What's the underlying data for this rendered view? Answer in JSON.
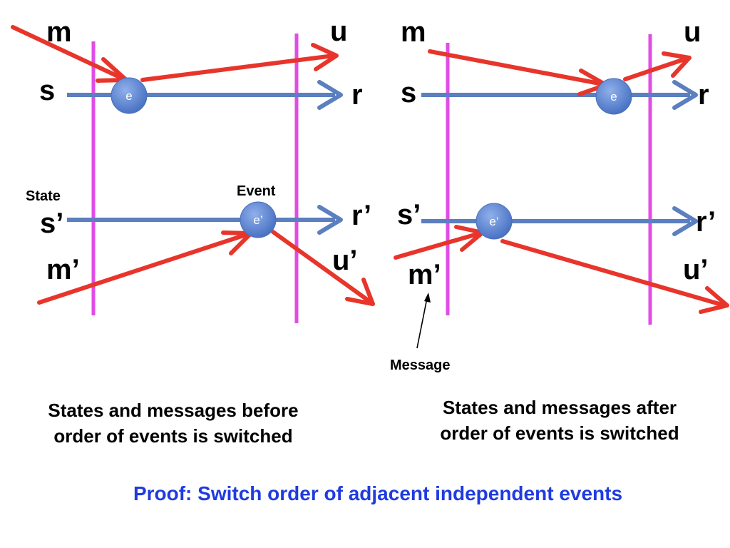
{
  "colors": {
    "state_line": "#5b7fbf",
    "message_arrow": "#e8352b",
    "cut_line": "#e14ce6",
    "event_node": "#5e86d1",
    "title_text": "#1f3be0"
  },
  "left_diagram": {
    "message_in_label": "m",
    "message_out_label": "u",
    "state_in_label": "s",
    "state_out_label": "r",
    "event_label": "e",
    "state_in_label_2": "s’",
    "state_out_label_2": "r’",
    "message_in_label_2": "m’",
    "message_out_label_2": "u’",
    "event_label_2": "e’",
    "state_annotation": "State",
    "event_annotation": "Event",
    "caption_line1": "States and messages before",
    "caption_line2": "order of events is switched"
  },
  "right_diagram": {
    "message_in_label": "m",
    "message_out_label": "u",
    "state_in_label": "s",
    "state_out_label": "r",
    "event_label": "e",
    "state_in_label_2": "s’",
    "state_out_label_2": "r’",
    "message_in_label_2": "m’",
    "message_out_label_2": "u’",
    "event_label_2": "e’",
    "message_annotation": "Message",
    "caption_line1": "States and messages after",
    "caption_line2": "order of events is switched"
  },
  "title": "Proof: Switch order of adjacent independent events"
}
